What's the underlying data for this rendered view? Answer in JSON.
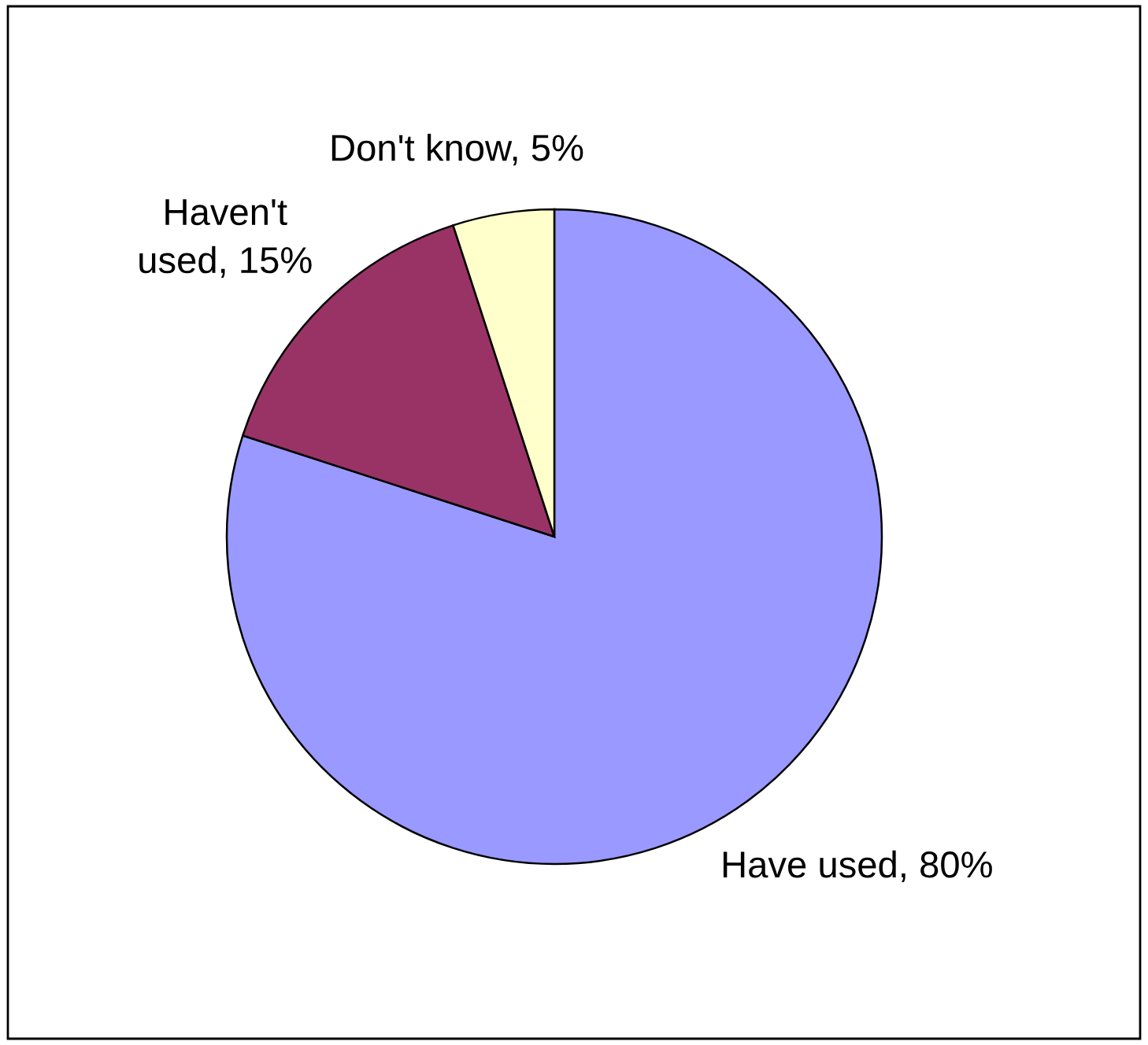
{
  "chart_data": {
    "type": "pie",
    "categories": [
      "Have used",
      "Haven't used",
      "Don't know"
    ],
    "values": [
      80,
      15,
      5
    ],
    "value_labels": [
      "80%",
      "15%",
      "5%"
    ],
    "colors": [
      "#9999ff",
      "#993366",
      "#ffffcc"
    ]
  }
}
